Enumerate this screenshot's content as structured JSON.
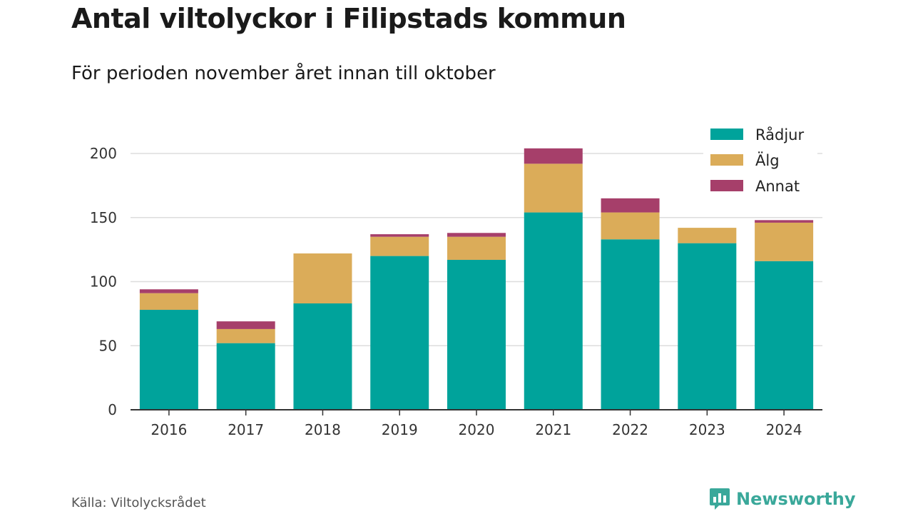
{
  "header": {
    "title": "Antal viltolyckor i Filipstads kommun",
    "subtitle": "För perioden november året innan till oktober"
  },
  "footer": {
    "source": "Källa: Viltolycksrådet",
    "brand": "Newsworthy"
  },
  "colors": {
    "Rådjur": "#00a39b",
    "Älg": "#dbac59",
    "Annat": "#a63f6a",
    "grid": "#dddddd",
    "axis": "#333333"
  },
  "chart_data": {
    "type": "bar",
    "stacked": true,
    "categories": [
      "2016",
      "2017",
      "2018",
      "2019",
      "2020",
      "2021",
      "2022",
      "2023",
      "2024"
    ],
    "series": [
      {
        "name": "Rådjur",
        "values": [
          78,
          52,
          83,
          120,
          117,
          154,
          133,
          130,
          116
        ]
      },
      {
        "name": "Älg",
        "values": [
          13,
          11,
          39,
          15,
          18,
          38,
          21,
          12,
          30
        ]
      },
      {
        "name": "Annat",
        "values": [
          3,
          6,
          0,
          2,
          3,
          12,
          11,
          0,
          2
        ]
      }
    ],
    "yticks": [
      0,
      50,
      100,
      150,
      200
    ],
    "ylim": [
      0,
      200
    ],
    "grid": true,
    "legend_position": "top-right"
  }
}
